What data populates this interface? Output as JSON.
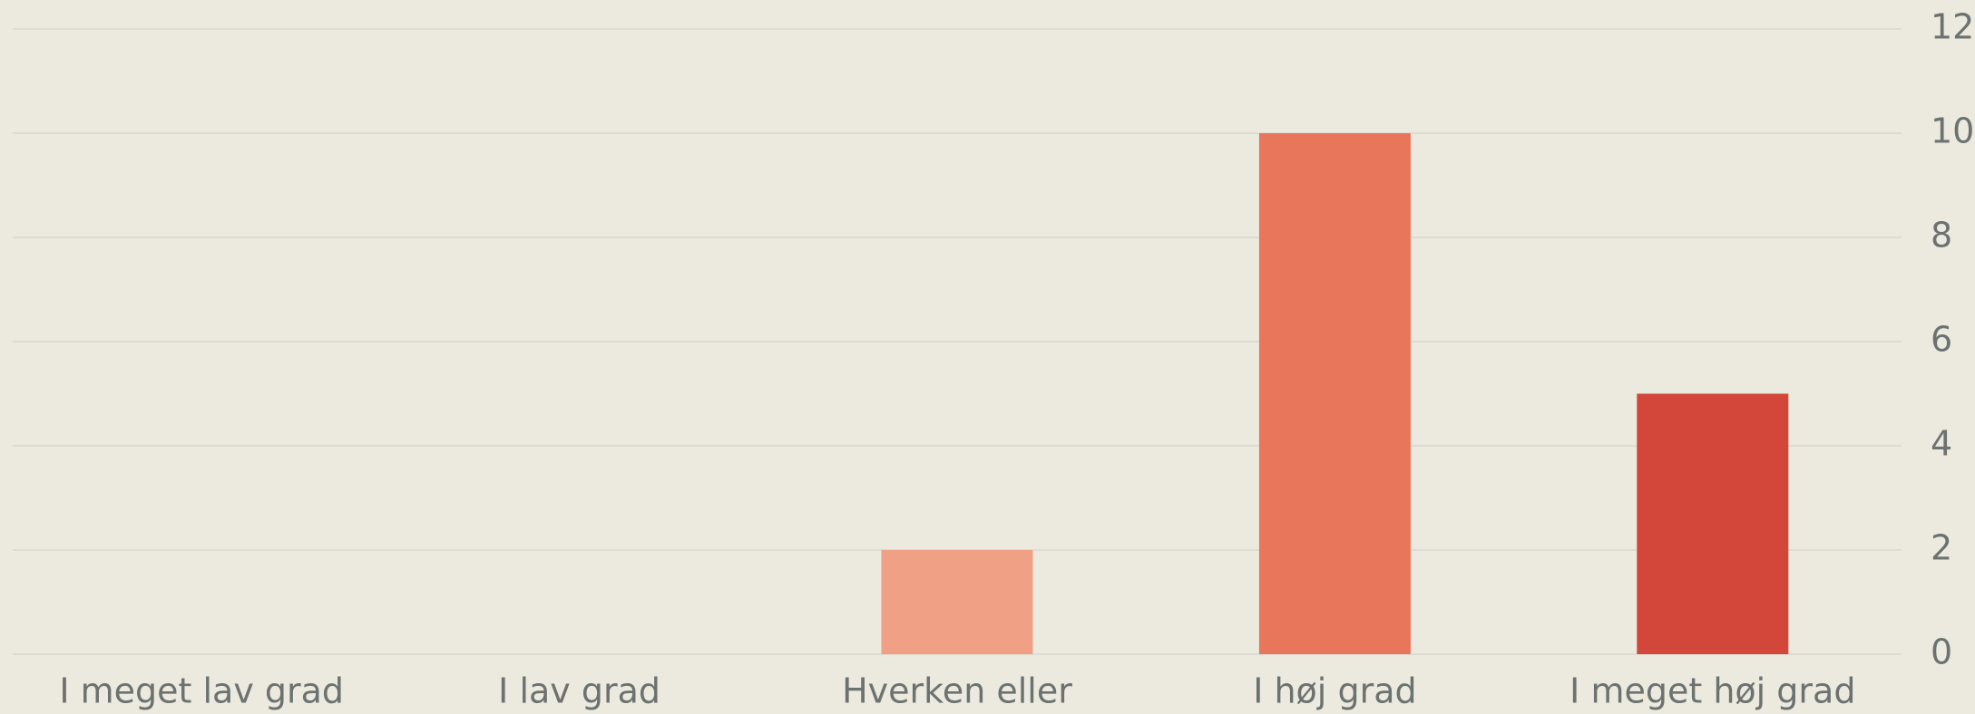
{
  "chart_data": {
    "type": "bar",
    "categories": [
      "I meget lav grad",
      "I lav grad",
      "Hverken eller",
      "I høj grad",
      "I meget høj grad"
    ],
    "values": [
      0,
      0,
      2,
      10,
      5
    ],
    "colors": [
      "#f6c6b2",
      "#f3b39b",
      "#f0a085",
      "#e8765a",
      "#d2473a"
    ],
    "ylim": [
      0,
      12
    ],
    "yticks": [
      0,
      2,
      4,
      6,
      8,
      10,
      12
    ],
    "grid": true,
    "y_axis_side": "right"
  }
}
